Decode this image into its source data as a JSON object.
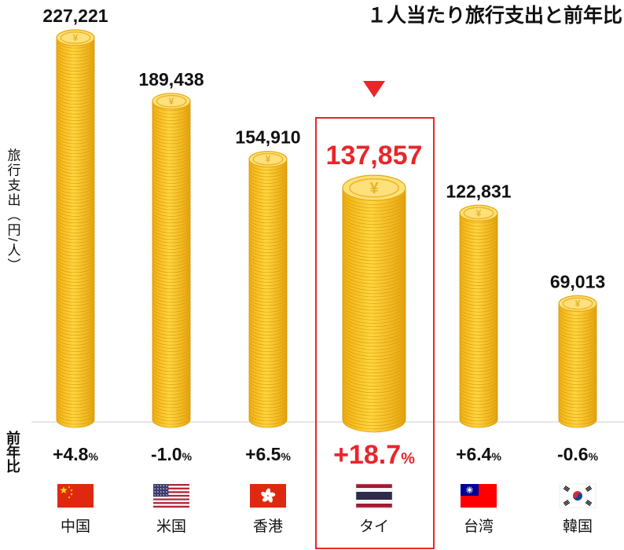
{
  "chart_data": {
    "type": "bar",
    "title": "１人当たり旅行支出と前年比",
    "ylabel": "旅行支出（円/人）",
    "change_label": "前年比",
    "categories": [
      "中国",
      "米国",
      "香港",
      "タイ",
      "台湾",
      "韓国"
    ],
    "values": [
      227221,
      189438,
      154910,
      137857,
      122831,
      69013
    ],
    "value_labels": [
      "227,221",
      "189,438",
      "154,910",
      "137,857",
      "122,831",
      "69,013"
    ],
    "changes": [
      "+4.8",
      "-1.0",
      "+6.5",
      "+18.7",
      "+6.4",
      "-0.6"
    ],
    "change_unit": "%",
    "highlight_index": 3,
    "flags": [
      "china-flag",
      "usa-flag",
      "hong-kong-flag",
      "thailand-flag",
      "taiwan-flag",
      "korea-flag"
    ],
    "ylim": [
      0,
      227221
    ],
    "grid": false,
    "colors": {
      "coin": "#F2B817",
      "coin_light": "#FFE07A",
      "coin_dark": "#D99A0B",
      "highlight": "#E8262B",
      "text": "#111111"
    }
  }
}
